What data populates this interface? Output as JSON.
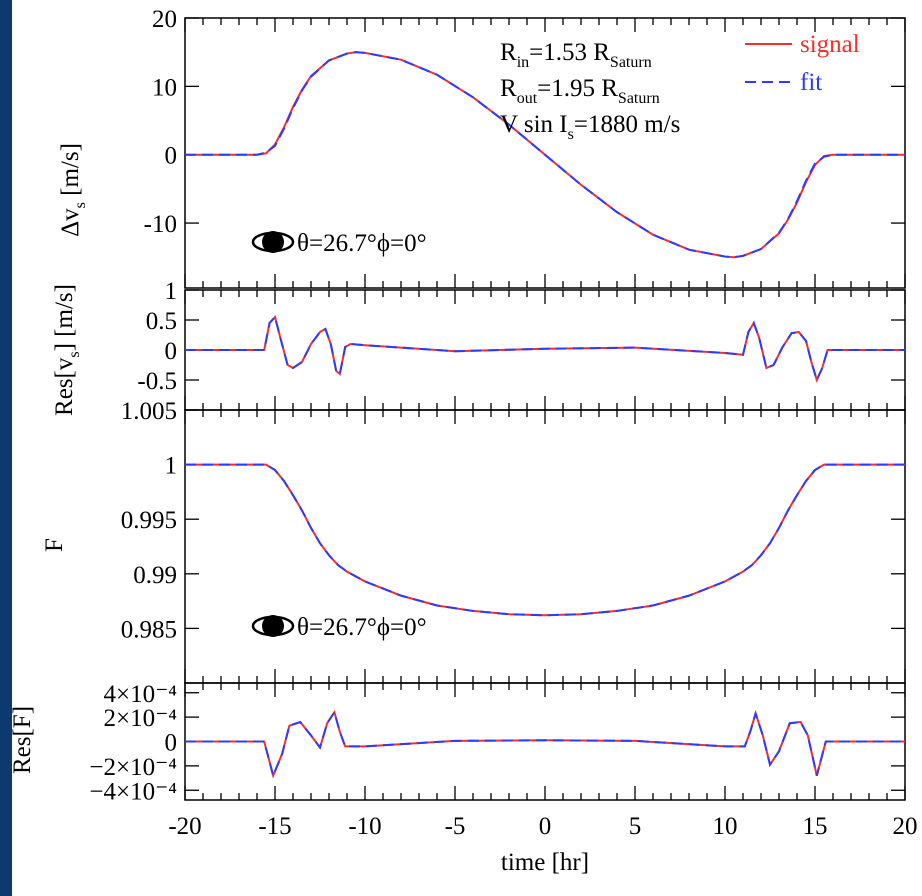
{
  "chart_data": [
    {
      "type": "line",
      "ylabel": [
        "Δv",
        {
          "sub": "s"
        },
        " [m/s]"
      ],
      "xlim": [
        -20,
        20
      ],
      "ylim": [
        -19.5,
        20
      ],
      "yticks": [
        -10,
        0,
        10,
        20
      ],
      "x": [
        -20,
        -16,
        -15.5,
        -15,
        -14.5,
        -14,
        -13.5,
        -13,
        -12,
        -11,
        -10.5,
        -10,
        -8,
        -6,
        -4,
        -2,
        0,
        2,
        4,
        6,
        8,
        10,
        10.5,
        11,
        12,
        13,
        13.5,
        14,
        14.5,
        15,
        15.5,
        16,
        20
      ],
      "series": [
        {
          "name": "signal",
          "color": "#ff2a2a",
          "linestyle": "solid",
          "values": [
            0,
            0,
            0.2,
            1.5,
            4,
            7,
            9.5,
            11.5,
            13.8,
            14.8,
            15,
            14.9,
            13.9,
            11.7,
            8.4,
            4.4,
            0,
            -4.4,
            -8.4,
            -11.7,
            -13.9,
            -14.9,
            -15,
            -14.8,
            -13.8,
            -11.5,
            -9.5,
            -7,
            -4,
            -1.5,
            -0.2,
            0,
            0
          ]
        },
        {
          "name": "fit",
          "color": "#2a3cff",
          "linestyle": "dashed",
          "values": [
            0,
            0,
            0.3,
            1.3,
            3.8,
            6.8,
            9.4,
            11.4,
            13.8,
            14.8,
            15,
            14.9,
            13.9,
            11.7,
            8.4,
            4.4,
            0,
            -4.4,
            -8.4,
            -11.7,
            -13.9,
            -14.9,
            -15,
            -14.8,
            -13.8,
            -11.4,
            -9.4,
            -6.8,
            -3.8,
            -1.3,
            -0.3,
            0,
            0
          ]
        }
      ],
      "legend": "upper right",
      "annotations": [
        [
          "R",
          {
            "sub": "in"
          },
          "=1.53 R",
          {
            "sub": "Saturn"
          }
        ],
        [
          "R",
          {
            "sub": "out"
          },
          "=1.95 R",
          {
            "sub": "Saturn"
          }
        ],
        [
          "V sin I",
          {
            "sub": "s"
          },
          "=1880 m/s"
        ]
      ],
      "planet_label": "θ=26.7°ϕ=0°"
    },
    {
      "type": "line",
      "ylabel": [
        "Res[v",
        {
          "sub": "s"
        },
        "] [m/s]"
      ],
      "xlim": [
        -20,
        20
      ],
      "ylim": [
        -1,
        1
      ],
      "yticks": [
        -0.5,
        0,
        0.5,
        1
      ],
      "x": [
        -20,
        -15.6,
        -15.3,
        -15,
        -14.7,
        -14.3,
        -14,
        -13.5,
        -13,
        -12.5,
        -12.2,
        -11.9,
        -11.6,
        -11.4,
        -11.1,
        -10.8,
        -10,
        -5,
        0,
        5,
        10,
        11,
        11.3,
        11.6,
        11.9,
        12.3,
        12.7,
        13.2,
        13.7,
        14.1,
        14.5,
        14.8,
        15.1,
        15.4,
        15.7,
        20
      ],
      "series": [
        {
          "color": "#ff2a2a",
          "linestyle": "solid",
          "values": [
            0,
            0,
            0.45,
            0.55,
            0.2,
            -0.25,
            -0.3,
            -0.2,
            0.1,
            0.3,
            0.35,
            0.1,
            -0.35,
            -0.4,
            0.05,
            0.1,
            0.08,
            -0.02,
            0.02,
            0.04,
            -0.05,
            -0.08,
            0.3,
            0.45,
            0.2,
            -0.3,
            -0.25,
            0.05,
            0.28,
            0.3,
            0.15,
            -0.2,
            -0.5,
            -0.3,
            0,
            0
          ]
        },
        {
          "color": "#2a3cff",
          "linestyle": "dashed",
          "values": [
            0,
            0,
            0.45,
            0.55,
            0.2,
            -0.25,
            -0.3,
            -0.2,
            0.1,
            0.3,
            0.35,
            0.1,
            -0.35,
            -0.4,
            0.05,
            0.1,
            0.08,
            -0.02,
            0.02,
            0.04,
            -0.05,
            -0.08,
            0.3,
            0.45,
            0.2,
            -0.3,
            -0.25,
            0.05,
            0.28,
            0.3,
            0.15,
            -0.2,
            -0.5,
            -0.3,
            0,
            0
          ]
        }
      ]
    },
    {
      "type": "line",
      "ylabel": [
        "F"
      ],
      "xlim": [
        -20,
        20
      ],
      "ylim": [
        0.98,
        1.005
      ],
      "yticks": [
        0.985,
        0.99,
        0.995,
        1,
        1.005
      ],
      "x": [
        -20,
        -15.5,
        -15,
        -14.5,
        -14,
        -13.5,
        -13,
        -12.5,
        -12,
        -11.5,
        -11,
        -10,
        -8,
        -6,
        -4,
        -2,
        0,
        2,
        4,
        6,
        8,
        10,
        11,
        11.5,
        12,
        12.5,
        13,
        13.5,
        14,
        14.5,
        15,
        15.5,
        20
      ],
      "series": [
        {
          "color": "#ff2a2a",
          "linestyle": "solid",
          "values": [
            1,
            1,
            0.9995,
            0.9985,
            0.9972,
            0.9958,
            0.9942,
            0.9928,
            0.9917,
            0.9908,
            0.9902,
            0.9893,
            0.988,
            0.9871,
            0.9866,
            0.9863,
            0.9862,
            0.9863,
            0.9866,
            0.9871,
            0.988,
            0.9893,
            0.9902,
            0.9908,
            0.9917,
            0.9928,
            0.9942,
            0.9958,
            0.9972,
            0.9985,
            0.9995,
            1,
            1
          ]
        },
        {
          "color": "#2a3cff",
          "linestyle": "dashed",
          "values": [
            1,
            1,
            0.9995,
            0.9985,
            0.9972,
            0.9958,
            0.9942,
            0.9928,
            0.9917,
            0.9908,
            0.9902,
            0.9893,
            0.988,
            0.9871,
            0.9866,
            0.9863,
            0.9862,
            0.9863,
            0.9866,
            0.9871,
            0.988,
            0.9893,
            0.9902,
            0.9908,
            0.9917,
            0.9928,
            0.9942,
            0.9958,
            0.9972,
            0.9985,
            0.9995,
            1,
            1
          ]
        }
      ],
      "planet_label": "θ=26.7°ϕ=0°"
    },
    {
      "type": "line",
      "ylabel": [
        "Res[F]"
      ],
      "xlabel": "time [hr]",
      "xlim": [
        -20,
        20
      ],
      "xticks": [
        -20,
        -15,
        -10,
        -5,
        0,
        5,
        10,
        15,
        20
      ],
      "ylim": [
        -0.00048,
        0.00048
      ],
      "yticks": [
        {
          "value": -0.0004,
          "label": "−4×10⁻⁴"
        },
        {
          "value": -0.0002,
          "label": "−2×10⁻⁴"
        },
        0,
        {
          "value": 0.0002,
          "label": "2×10⁻⁴"
        },
        {
          "value": 0.0004,
          "label": "4×10⁻⁴"
        }
      ],
      "x": [
        -20,
        -15.6,
        -15.1,
        -14.6,
        -14.2,
        -13.6,
        -13,
        -12.5,
        -12.1,
        -11.7,
        -11.4,
        -11.1,
        -10,
        -5,
        0,
        5,
        10,
        11.1,
        11.4,
        11.7,
        12.1,
        12.5,
        13,
        13.6,
        14.2,
        14.6,
        15.1,
        15.6,
        20
      ],
      "series": [
        {
          "color": "#ff2a2a",
          "linestyle": "solid",
          "values": [
            0,
            0,
            -0.00028,
            -0.0001,
            0.00013,
            0.00016,
            5e-05,
            -5e-05,
            0.00015,
            0.00024,
            8e-05,
            -4e-05,
            -4e-05,
            5e-06,
            1e-05,
            5e-06,
            -4e-05,
            -4e-05,
            8e-05,
            0.00023,
            5e-05,
            -0.00019,
            -8e-05,
            0.00015,
            0.00016,
            5e-05,
            -0.00028,
            0,
            0
          ]
        },
        {
          "color": "#2a3cff",
          "linestyle": "dashed",
          "values": [
            0,
            0,
            -0.00028,
            -0.0001,
            0.00013,
            0.00016,
            5e-05,
            -5e-05,
            0.00015,
            0.00024,
            8e-05,
            -4e-05,
            -4e-05,
            5e-06,
            1e-05,
            5e-06,
            -4e-05,
            -4e-05,
            8e-05,
            0.00023,
            5e-05,
            -0.00019,
            -8e-05,
            0.00015,
            0.00016,
            5e-05,
            -0.00028,
            0,
            0
          ]
        }
      ]
    }
  ]
}
